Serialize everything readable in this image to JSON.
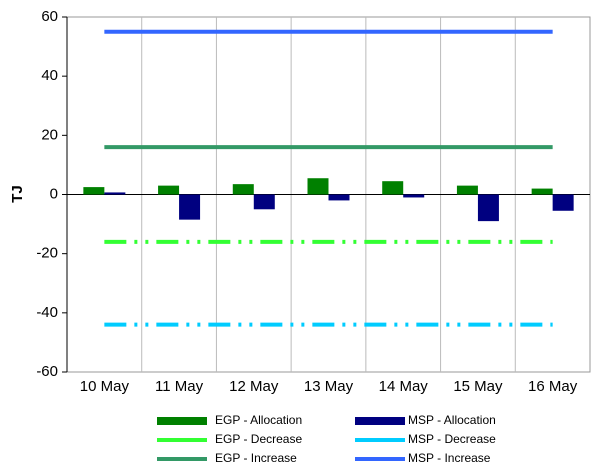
{
  "chart_data": {
    "type": "combo",
    "y_label": "TJ",
    "categories": [
      "10 May",
      "11 May",
      "12 May",
      "13 May",
      "14 May",
      "15 May",
      "16 May"
    ],
    "ylim": [
      -60,
      60
    ],
    "yticks": [
      -60,
      -40,
      -20,
      0,
      20,
      40,
      60
    ],
    "xgrid": true,
    "legend": "bottom",
    "series": [
      {
        "name": "EGP - Allocation",
        "type": "bar",
        "color": "#008000",
        "values": [
          2.5,
          3,
          3.5,
          5.5,
          4.5,
          3,
          2
        ]
      },
      {
        "name": "MSP - Allocation",
        "type": "bar",
        "color": "#000080",
        "values": [
          0.7,
          -8.5,
          -5,
          -2,
          -1,
          -9,
          -5.5
        ]
      },
      {
        "name": "EGP - Decrease",
        "type": "line",
        "dash": "dash-dot-dot",
        "color": "#33ff33",
        "values": [
          -16,
          -16,
          -16,
          -16,
          -16,
          -16,
          -16
        ]
      },
      {
        "name": "MSP - Decrease",
        "type": "line",
        "dash": "dash-dot-dot",
        "color": "#00ccff",
        "values": [
          -44,
          -44,
          -44,
          -44,
          -44,
          -44,
          -44
        ]
      },
      {
        "name": "EGP - Increase",
        "type": "line",
        "color": "#339966",
        "values": [
          16,
          16,
          16,
          16,
          16,
          16,
          16
        ]
      },
      {
        "name": "MSP - Increase",
        "type": "line",
        "color": "#3366ff",
        "values": [
          55,
          55,
          55,
          55,
          55,
          55,
          55
        ]
      }
    ]
  }
}
